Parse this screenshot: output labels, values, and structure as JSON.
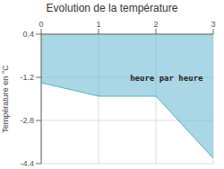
{
  "chart_data": {
    "type": "area",
    "title": "Evolution de la température",
    "y_label": "Température en °C",
    "x": [
      0,
      1,
      2,
      3
    ],
    "values": [
      -1.4,
      -1.9,
      -1.9,
      -4.2
    ],
    "fill_to": 0.4,
    "color": "#55b0cc",
    "xlim": [
      0,
      3
    ],
    "xticks": [
      0,
      1,
      2,
      3
    ],
    "ylim": [
      -4.4,
      0.4
    ],
    "yticks": [
      0.4,
      -1.2,
      -2.8,
      -4.4
    ],
    "grid": true,
    "annotations": [
      {
        "text": "heure par heure",
        "x": 1.55,
        "y": -1.05
      }
    ]
  }
}
